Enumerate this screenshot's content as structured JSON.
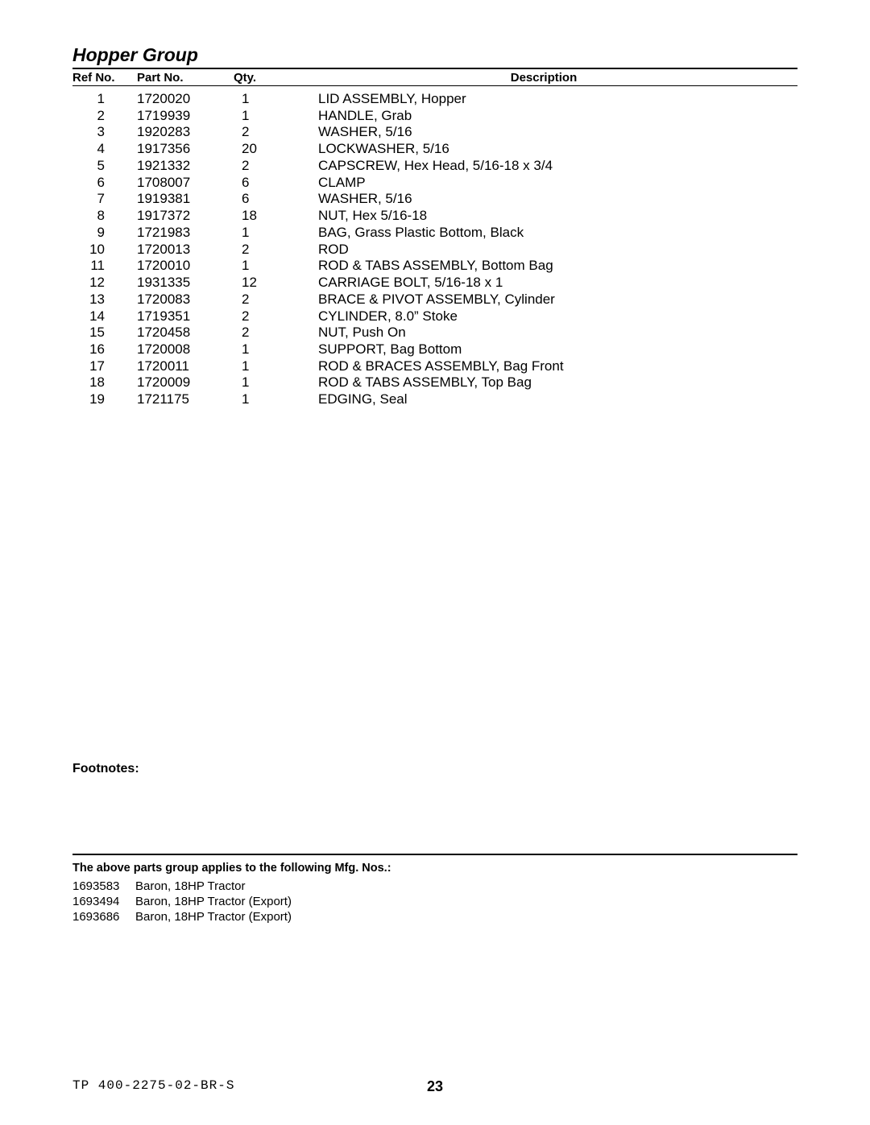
{
  "title": "Hopper Group",
  "headers": {
    "ref": "Ref No.",
    "part": "Part No.",
    "qty": "Qty.",
    "desc": "Description"
  },
  "rows": [
    {
      "ref": "1",
      "part": "1720020",
      "qty": "1",
      "desc": "LID ASSEMBLY, Hopper"
    },
    {
      "ref": "2",
      "part": "1719939",
      "qty": "1",
      "desc": "HANDLE, Grab"
    },
    {
      "ref": "3",
      "part": "1920283",
      "qty": "2",
      "desc": "WASHER, 5/16"
    },
    {
      "ref": "4",
      "part": "1917356",
      "qty": "20",
      "desc": "LOCKWASHER, 5/16"
    },
    {
      "ref": "5",
      "part": "1921332",
      "qty": "2",
      "desc": "CAPSCREW, Hex Head, 5/16-18 x 3/4"
    },
    {
      "ref": "6",
      "part": "1708007",
      "qty": "6",
      "desc": "CLAMP"
    },
    {
      "ref": "7",
      "part": "1919381",
      "qty": "6",
      "desc": "WASHER, 5/16"
    },
    {
      "ref": "8",
      "part": "1917372",
      "qty": "18",
      "desc": "NUT, Hex 5/16-18"
    },
    {
      "ref": "9",
      "part": "1721983",
      "qty": "1",
      "desc": "BAG, Grass Plastic Bottom, Black"
    },
    {
      "ref": "10",
      "part": "1720013",
      "qty": "2",
      "desc": "ROD"
    },
    {
      "ref": "11",
      "part": "1720010",
      "qty": "1",
      "desc": "ROD & TABS ASSEMBLY, Bottom Bag"
    },
    {
      "ref": "12",
      "part": "1931335",
      "qty": "12",
      "desc": "CARRIAGE BOLT, 5/16-18 x 1"
    },
    {
      "ref": "13",
      "part": "1720083",
      "qty": "2",
      "desc": "BRACE & PIVOT ASSEMBLY, Cylinder"
    },
    {
      "ref": "14",
      "part": "1719351",
      "qty": "2",
      "desc": "CYLINDER, 8.0” Stoke"
    },
    {
      "ref": "15",
      "part": "1720458",
      "qty": "2",
      "desc": "NUT, Push On"
    },
    {
      "ref": "16",
      "part": "1720008",
      "qty": "1",
      "desc": "SUPPORT, Bag Bottom"
    },
    {
      "ref": "17",
      "part": "1720011",
      "qty": "1",
      "desc": "ROD & BRACES ASSEMBLY, Bag Front"
    },
    {
      "ref": "18",
      "part": "1720009",
      "qty": "1",
      "desc": "ROD & TABS ASSEMBLY, Top Bag"
    },
    {
      "ref": "19",
      "part": "1721175",
      "qty": "1",
      "desc": "EDGING, Seal"
    }
  ],
  "footnotes_label": "Footnotes:",
  "applies_label": "The above parts group applies to the following Mfg. Nos.:",
  "mfg": [
    {
      "num": "1693583",
      "desc": "Baron, 18HP Tractor"
    },
    {
      "num": "1693494",
      "desc": "Baron, 18HP Tractor (Export)"
    },
    {
      "num": "1693686",
      "desc": "Baron, 18HP Tractor (Export)"
    }
  ],
  "doc_code": "TP 400-2275-02-BR-S",
  "page_number": "23"
}
